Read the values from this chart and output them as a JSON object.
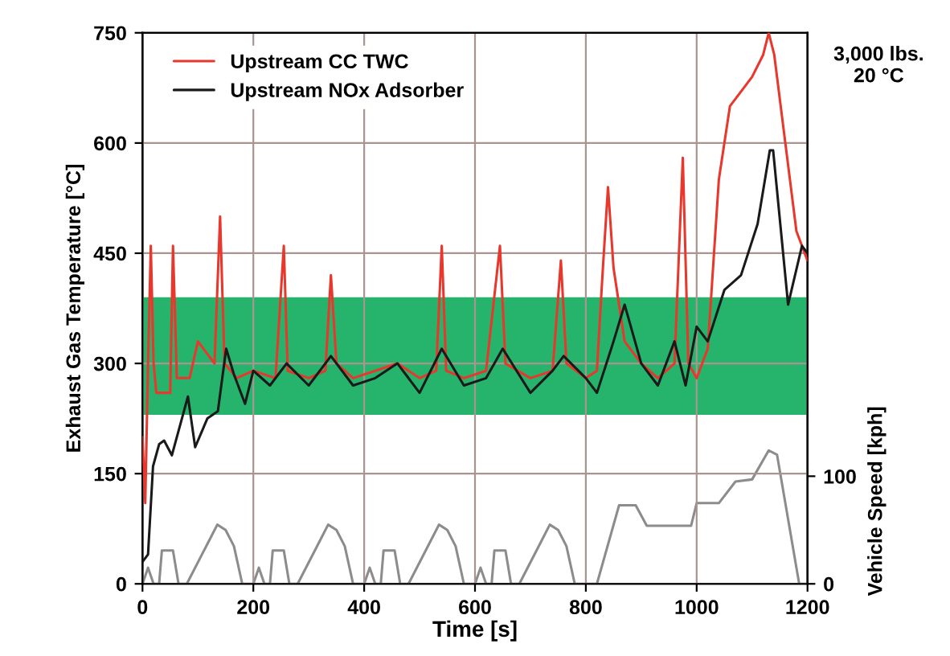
{
  "chart_data": {
    "type": "line",
    "xlabel": "Time [s]",
    "ylabel": "Exhaust Gas Temperature [°C]",
    "y2label": "Vehicle Speed [kph]",
    "xlim": [
      0,
      1200
    ],
    "xticks": [
      0,
      200,
      400,
      600,
      800,
      1000,
      1200
    ],
    "ylim": [
      0,
      750
    ],
    "yticks": [
      0,
      150,
      300,
      450,
      600,
      750
    ],
    "y2lim": [
      0,
      512
    ],
    "y2ticks": [
      0,
      100
    ],
    "grid": true,
    "legend": "top left",
    "marker": "none",
    "line_style": "solid",
    "annotations": [
      "3,000 lbs.\n20 °C"
    ],
    "bands": [
      {
        "axis": "y",
        "from": 230,
        "to": 390,
        "color": "#00a651"
      }
    ],
    "series": [
      {
        "name": "Upstream CC TWC",
        "color": "#e8382d",
        "x": [
          0,
          5,
          10,
          15,
          20,
          25,
          50,
          55,
          62,
          85,
          100,
          130,
          140,
          148,
          170,
          200,
          240,
          255,
          262,
          300,
          330,
          340,
          350,
          380,
          420,
          460,
          500,
          530,
          540,
          548,
          580,
          620,
          645,
          655,
          700,
          740,
          755,
          765,
          800,
          820,
          830,
          840,
          850,
          870,
          900,
          930,
          960,
          975,
          985,
          1000,
          1020,
          1040,
          1060,
          1080,
          1100,
          1120,
          1130,
          1140,
          1160,
          1180,
          1200
        ],
        "values": [
          200,
          110,
          300,
          460,
          300,
          260,
          260,
          460,
          280,
          280,
          330,
          300,
          500,
          300,
          280,
          290,
          280,
          460,
          290,
          280,
          290,
          420,
          300,
          280,
          290,
          300,
          280,
          290,
          460,
          290,
          280,
          290,
          460,
          300,
          280,
          290,
          440,
          300,
          280,
          290,
          420,
          540,
          430,
          330,
          300,
          280,
          300,
          580,
          300,
          280,
          320,
          550,
          650,
          670,
          690,
          720,
          750,
          720,
          600,
          480,
          440
        ]
      },
      {
        "name": "Upstream NOx Adsorber",
        "color": "#1a1a1a",
        "x": [
          0,
          10,
          19,
          30,
          39,
          53,
          82,
          95,
          117,
          136,
          151,
          165,
          185,
          200,
          230,
          260,
          300,
          340,
          380,
          420,
          460,
          500,
          540,
          580,
          620,
          650,
          700,
          740,
          760,
          800,
          820,
          850,
          870,
          900,
          930,
          960,
          980,
          1000,
          1020,
          1050,
          1080,
          1110,
          1132,
          1138,
          1165,
          1190,
          1200
        ],
        "values": [
          30,
          40,
          160,
          190,
          195,
          175,
          255,
          186,
          225,
          235,
          320,
          285,
          245,
          290,
          270,
          300,
          270,
          310,
          270,
          280,
          300,
          260,
          320,
          270,
          280,
          320,
          260,
          290,
          310,
          280,
          260,
          330,
          380,
          300,
          270,
          330,
          270,
          350,
          330,
          400,
          420,
          490,
          590,
          590,
          380,
          460,
          450
        ]
      },
      {
        "color": "#8c8c8c",
        "axis": "y2",
        "x": [
          0,
          10,
          20,
          30,
          35,
          55,
          65,
          80,
          120,
          135,
          150,
          165,
          180,
          200,
          210,
          220,
          230,
          235,
          255,
          265,
          280,
          320,
          335,
          350,
          365,
          380,
          400,
          410,
          420,
          430,
          435,
          455,
          465,
          480,
          520,
          535,
          550,
          565,
          580,
          600,
          610,
          620,
          630,
          635,
          655,
          665,
          680,
          720,
          735,
          750,
          765,
          780,
          800,
          820,
          860,
          890,
          910,
          990,
          1000,
          1040,
          1070,
          1100,
          1130,
          1145,
          1185,
          1200
        ],
        "values": [
          0,
          15,
          0,
          0,
          31,
          31,
          0,
          0,
          40,
          55,
          50,
          35,
          0,
          0,
          15,
          0,
          0,
          31,
          31,
          0,
          0,
          40,
          55,
          50,
          35,
          0,
          0,
          15,
          0,
          0,
          31,
          31,
          0,
          0,
          40,
          55,
          50,
          35,
          0,
          0,
          15,
          0,
          0,
          31,
          31,
          0,
          0,
          40,
          55,
          50,
          35,
          0,
          0,
          0,
          73,
          73,
          54,
          54,
          75,
          75,
          95,
          97,
          124,
          120,
          0,
          0
        ]
      }
    ]
  }
}
